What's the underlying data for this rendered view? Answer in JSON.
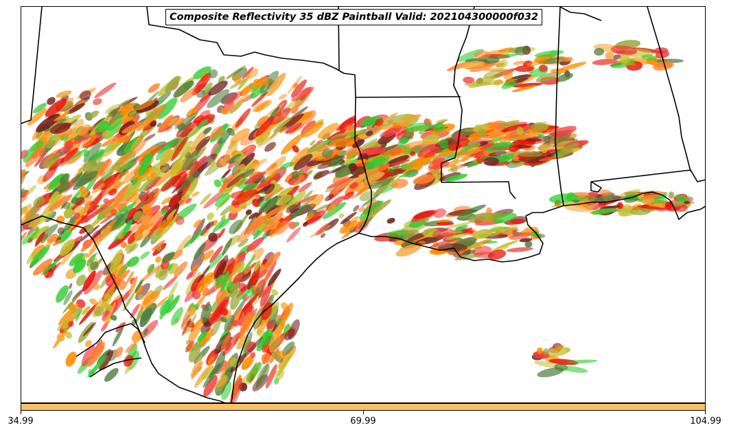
{
  "title": "Composite Reflectivity 35 dBZ Paintball Valid: 202104300000f032",
  "colorbar": {
    "color": "#fcc163",
    "ticks": [
      "34.99",
      "69.99",
      "104.99"
    ]
  },
  "map": {
    "background": "#ffffff",
    "boundary_color": "#000000",
    "paintball_colors": [
      "#ff8c00",
      "#ff7f2a",
      "#e8160c",
      "#f23c3c",
      "#2ecc2e",
      "#9aa83a",
      "#6f2020",
      "#4f7f3f",
      "#f4a93a",
      "#c0c030"
    ]
  }
}
